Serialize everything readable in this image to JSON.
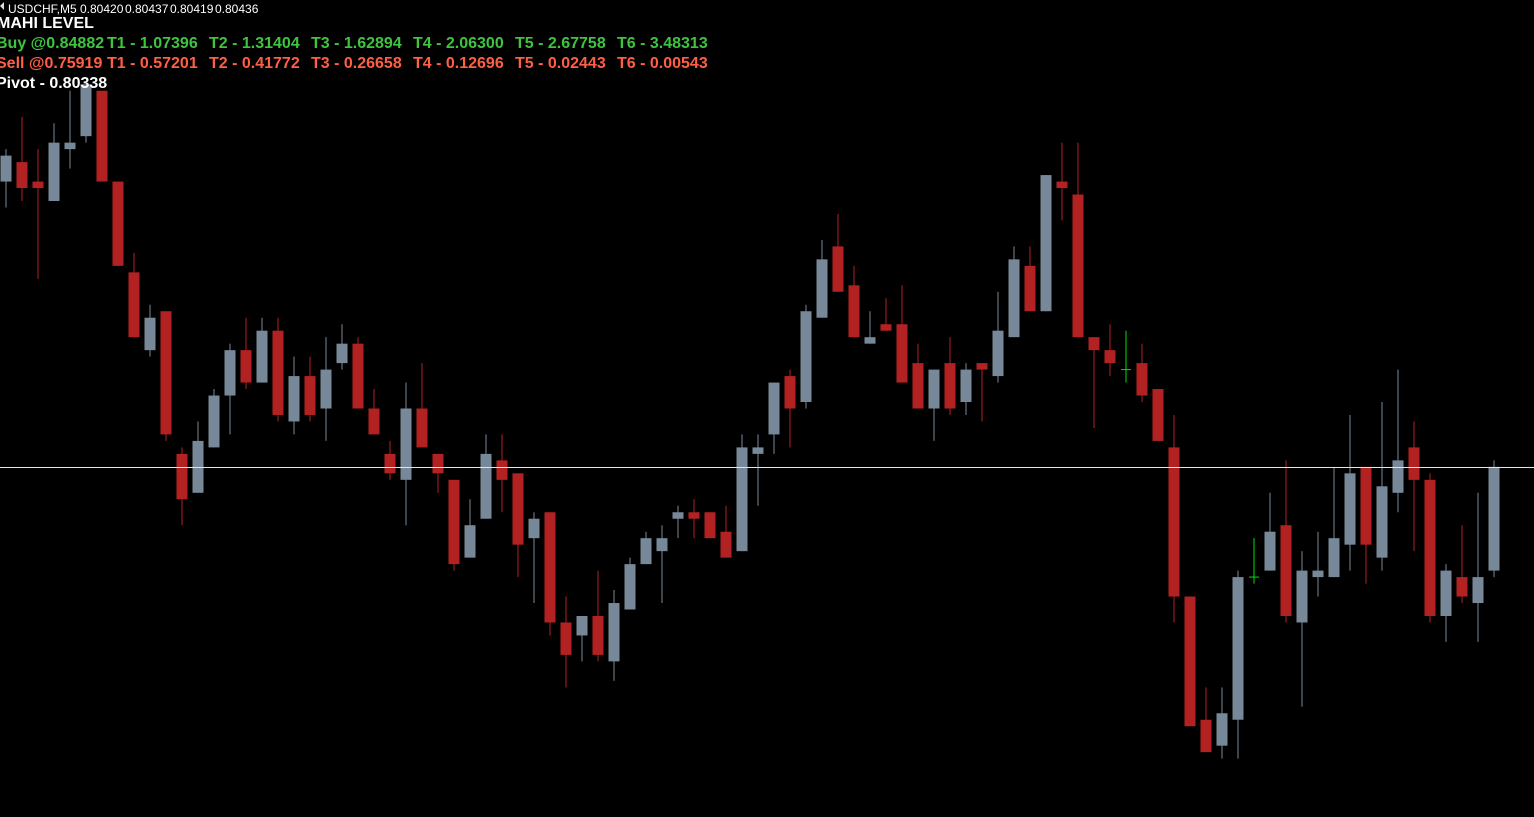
{
  "chart_data": {
    "type": "candlestick",
    "symbol": "USDCHF,M5",
    "header_ohlc": [
      {
        "value": 0.8042,
        "label": "0.80420"
      },
      {
        "value": 0.80437,
        "label": "0.80437"
      },
      {
        "value": 0.80419,
        "label": "0.80419"
      },
      {
        "value": 0.80436,
        "label": "0.80436"
      }
    ],
    "open": [
      0.8048,
      0.80483,
      0.8048,
      0.80477,
      0.80485,
      0.80487,
      0.80494,
      0.8048,
      0.80466,
      0.80454,
      0.8046,
      0.80438,
      0.80432,
      0.80439,
      0.80447,
      0.80454,
      0.80449,
      0.80457,
      0.80443,
      0.8045,
      0.80445,
      0.80452,
      0.80455,
      0.80445,
      0.80438,
      0.80434,
      0.80445,
      0.80438,
      0.80434,
      0.80422,
      0.80428,
      0.80437,
      0.80435,
      0.80425,
      0.80429,
      0.80412,
      0.8041,
      0.80413,
      0.80406,
      0.80414,
      0.80421,
      0.80423,
      0.80428,
      0.80429,
      0.80429,
      0.80426,
      0.80423,
      0.80438,
      0.80441,
      0.8045,
      0.80446,
      0.80459,
      0.8047,
      0.80464,
      0.80455,
      0.80458,
      0.80458,
      0.80452,
      0.80445,
      0.80452,
      0.80446,
      0.80452,
      0.8045,
      0.80456,
      0.80467,
      0.8046,
      0.8048,
      0.80478,
      0.80456,
      0.80454,
      0.80451,
      0.80452,
      0.80448,
      0.80439,
      0.80416,
      0.80397,
      0.80393,
      0.80397,
      0.80419,
      0.8042,
      0.80427,
      0.80412,
      0.80419,
      0.80419,
      0.80424,
      0.80436,
      0.80422,
      0.80432,
      0.80439,
      0.80434,
      0.80413,
      0.80419,
      0.80415,
      0.8042
    ],
    "high": [
      0.80485,
      0.8049,
      0.80485,
      0.80489,
      0.80494,
      0.80495,
      0.80494,
      0.8048,
      0.80469,
      0.80461,
      0.8046,
      0.80439,
      0.80443,
      0.80448,
      0.80455,
      0.80459,
      0.80459,
      0.80459,
      0.80453,
      0.80453,
      0.80456,
      0.80458,
      0.80456,
      0.80448,
      0.8044,
      0.80449,
      0.80452,
      0.80438,
      0.80434,
      0.80431,
      0.80441,
      0.80441,
      0.80435,
      0.80429,
      0.80429,
      0.80416,
      0.80413,
      0.8042,
      0.80417,
      0.80422,
      0.80426,
      0.80427,
      0.8043,
      0.80431,
      0.80429,
      0.8043,
      0.80441,
      0.80441,
      0.80449,
      0.80451,
      0.80461,
      0.80471,
      0.80475,
      0.80467,
      0.8046,
      0.80462,
      0.80464,
      0.80455,
      0.80451,
      0.80456,
      0.80452,
      0.80452,
      0.80463,
      0.8047,
      0.8047,
      0.80481,
      0.80486,
      0.80486,
      0.80456,
      0.80458,
      0.80457,
      0.80455,
      0.80448,
      0.80444,
      0.80416,
      0.80402,
      0.80402,
      0.8042,
      0.80425,
      0.80432,
      0.80437,
      0.80423,
      0.80426,
      0.80436,
      0.80444,
      0.80436,
      0.80446,
      0.80451,
      0.80443,
      0.80435,
      0.80421,
      0.80427,
      0.80432,
      0.80437
    ],
    "low": [
      0.80476,
      0.80477,
      0.80465,
      0.80477,
      0.80482,
      0.80486,
      0.8048,
      0.80467,
      0.80456,
      0.80453,
      0.8044,
      0.80427,
      0.80432,
      0.80439,
      0.80441,
      0.80448,
      0.80449,
      0.80443,
      0.80441,
      0.80443,
      0.8044,
      0.80451,
      0.80445,
      0.80441,
      0.80434,
      0.80427,
      0.80439,
      0.80432,
      0.8042,
      0.80422,
      0.80428,
      0.80429,
      0.80419,
      0.80415,
      0.8041,
      0.80402,
      0.80406,
      0.80406,
      0.80403,
      0.80414,
      0.80421,
      0.80415,
      0.80425,
      0.80425,
      0.80425,
      0.80422,
      0.80423,
      0.8043,
      0.80438,
      0.80439,
      0.80445,
      0.80459,
      0.80463,
      0.80456,
      0.80455,
      0.80457,
      0.80449,
      0.80445,
      0.8044,
      0.80444,
      0.80444,
      0.80443,
      0.80449,
      0.80456,
      0.8046,
      0.8046,
      0.80474,
      0.80456,
      0.80442,
      0.8045,
      0.80449,
      0.80446,
      0.8044,
      0.80412,
      0.80396,
      0.80392,
      0.80391,
      0.80391,
      0.80418,
      0.8042,
      0.80412,
      0.80399,
      0.80416,
      0.80419,
      0.8042,
      0.80418,
      0.8042,
      0.80429,
      0.80423,
      0.80412,
      0.80409,
      0.80415,
      0.80409,
      0.80419
    ],
    "close": [
      0.80484,
      0.80479,
      0.80479,
      0.80486,
      0.80486,
      0.80495,
      0.8048,
      0.80467,
      0.80456,
      0.80459,
      0.80441,
      0.80431,
      0.8044,
      0.80447,
      0.80454,
      0.80449,
      0.80457,
      0.80444,
      0.8045,
      0.80444,
      0.80451,
      0.80455,
      0.80445,
      0.80441,
      0.80435,
      0.80445,
      0.80439,
      0.80435,
      0.80421,
      0.80427,
      0.80438,
      0.80434,
      0.80424,
      0.80428,
      0.80412,
      0.80407,
      0.80413,
      0.80407,
      0.80415,
      0.80421,
      0.80425,
      0.80425,
      0.80429,
      0.80428,
      0.80425,
      0.80422,
      0.80439,
      0.80439,
      0.80449,
      0.80445,
      0.8046,
      0.80468,
      0.80463,
      0.80456,
      0.80456,
      0.80457,
      0.80449,
      0.80445,
      0.80451,
      0.80445,
      0.80451,
      0.80451,
      0.80457,
      0.80468,
      0.8046,
      0.80481,
      0.80479,
      0.80456,
      0.80454,
      0.80452,
      0.80451,
      0.80447,
      0.8044,
      0.80416,
      0.80396,
      0.80392,
      0.80398,
      0.80419,
      0.80419,
      0.80426,
      0.80413,
      0.8042,
      0.8042,
      0.80425,
      0.80435,
      0.80424,
      0.80433,
      0.80437,
      0.80434,
      0.80413,
      0.8042,
      0.80416,
      0.80419,
      0.80436
    ],
    "up_color": "#778899",
    "down_color": "#b22222",
    "doji_color": "#00e000",
    "ylim": [
      0.80382,
      0.80508
    ],
    "price_line": true,
    "price_line_color": "#e6e6e6"
  },
  "indicator": {
    "title": "MAHI LEVEL",
    "buy": {
      "entry": "Buy @0.84882",
      "targets": [
        "T1 - 1.07396",
        "T2 - 1.31404",
        "T3 - 1.62894",
        "T4 - 2.06300",
        "T5 - 2.67758",
        "T6 - 3.48313"
      ],
      "color": "#3fc43f"
    },
    "sell": {
      "entry": "Sell @0.75919",
      "targets": [
        "T1 - 0.57201",
        "T2 - 0.41772",
        "T3 - 0.26658",
        "T4 - 0.12696",
        "T5 - 0.02443",
        "T6 - 0.00543"
      ],
      "color": "#ff5f45"
    },
    "pivot": "Pivot - 0.80338"
  }
}
